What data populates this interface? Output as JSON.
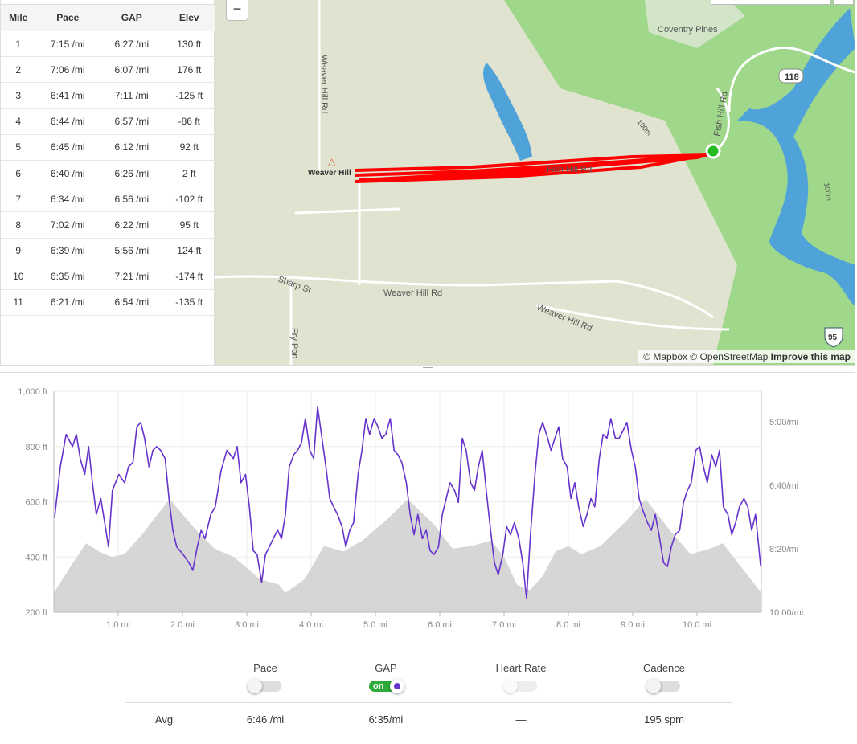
{
  "splits": {
    "headers": [
      "Mile",
      "Pace",
      "GAP",
      "Elev"
    ],
    "rows": [
      [
        "1",
        "7:15 /mi",
        "6:27 /mi",
        "130 ft"
      ],
      [
        "2",
        "7:06 /mi",
        "6:07 /mi",
        "176 ft"
      ],
      [
        "3",
        "6:41 /mi",
        "7:11 /mi",
        "-125 ft"
      ],
      [
        "4",
        "6:44 /mi",
        "6:57 /mi",
        "-86 ft"
      ],
      [
        "5",
        "6:45 /mi",
        "6:12 /mi",
        "92 ft"
      ],
      [
        "6",
        "6:40 /mi",
        "6:26 /mi",
        "2 ft"
      ],
      [
        "7",
        "6:34 /mi",
        "6:56 /mi",
        "-102 ft"
      ],
      [
        "8",
        "7:02 /mi",
        "6:22 /mi",
        "95 ft"
      ],
      [
        "9",
        "6:39 /mi",
        "5:56 /mi",
        "124 ft"
      ],
      [
        "10",
        "6:35 /mi",
        "7:21 /mi",
        "-174 ft"
      ],
      [
        "11",
        "6:21 /mi",
        "6:54 /mi",
        "-135 ft"
      ]
    ]
  },
  "map": {
    "zoom_out_label": "−",
    "labels": {
      "weaver_hill_rd_vertical": "Weaver Hill Rd",
      "weaver_hill": "Weaver Hill",
      "fish_hill_rd": "Fish Hill Rd",
      "fish_hill_rd_vertical": "Fish Hill Rd",
      "coventry_pines": "Coventry Pines",
      "route_118": "118",
      "route_95": "95",
      "contour_100m_a": "100m",
      "contour_100m_b": "100m",
      "sharp_st": "Sharp St",
      "weaver_hill_rd_a": "Weaver Hill Rd",
      "weaver_hill_rd_b": "Weaver Hill Rd",
      "fry_pond": "Fry Pon"
    },
    "attribution": {
      "mapbox": "© Mapbox",
      "osm": "© OpenStreetMap",
      "improve": "Improve this map"
    },
    "colors": {
      "track": "#ff0000",
      "forest": "#9fd88a",
      "water": "#4fa3d9",
      "land": "#e0e3cf",
      "start_marker": "#22bb22"
    }
  },
  "chart_data": {
    "type": "line",
    "xlabel": "",
    "ylabel": "",
    "x_ticks": [
      "1.0 mi",
      "2.0 mi",
      "3.0 mi",
      "4.0 mi",
      "5.0 mi",
      "6.0 mi",
      "7.0 mi",
      "8.0 mi",
      "9.0 mi",
      "10.0 mi"
    ],
    "y_left_ticks": [
      "200 ft",
      "400 ft",
      "600 ft",
      "800 ft",
      "1,000 ft"
    ],
    "y_right_ticks": [
      "5:00/mi",
      "6:40/mi",
      "8:20/mi",
      "10:00/mi"
    ],
    "xlim": [
      0,
      11
    ],
    "ylim_left_ft": [
      200,
      1000
    ],
    "ylim_right_pace": [
      "4:12",
      "10:00"
    ],
    "grid": true,
    "colors": {
      "elevation": "#d6d6d6",
      "gap": "#6633cc"
    },
    "elevation": {
      "miles": [
        0,
        0.3,
        0.5,
        0.7,
        0.9,
        1.1,
        1.4,
        1.8,
        2.2,
        2.5,
        2.8,
        3.2,
        3.5,
        3.6,
        3.9,
        4.2,
        4.5,
        4.8,
        5.2,
        5.5,
        5.9,
        6.2,
        6.5,
        6.8,
        7.0,
        7.2,
        7.4,
        7.6,
        7.8,
        8.0,
        8.2,
        8.5,
        8.9,
        9.2,
        9.6,
        9.9,
        10.2,
        10.4,
        10.7,
        11.0
      ],
      "ft": [
        270,
        380,
        450,
        420,
        400,
        410,
        490,
        610,
        500,
        430,
        400,
        320,
        300,
        270,
        320,
        440,
        420,
        460,
        540,
        610,
        520,
        430,
        440,
        460,
        400,
        300,
        280,
        330,
        420,
        440,
        410,
        440,
        530,
        610,
        490,
        410,
        430,
        450,
        360,
        270
      ]
    },
    "gap": {
      "miles": [
        0.01,
        0.1,
        0.19,
        0.29,
        0.35,
        0.41,
        0.48,
        0.54,
        0.6,
        0.66,
        0.73,
        0.79,
        0.85,
        0.91,
        1.01,
        1.1,
        1.16,
        1.23,
        1.29,
        1.35,
        1.41,
        1.48,
        1.54,
        1.6,
        1.66,
        1.73,
        1.79,
        1.85,
        1.91,
        2.01,
        2.1,
        2.16,
        2.23,
        2.29,
        2.35,
        2.44,
        2.51,
        2.6,
        2.69,
        2.79,
        2.85,
        2.91,
        2.98,
        3.04,
        3.1,
        3.16,
        3.23,
        3.29,
        3.35,
        3.41,
        3.48,
        3.54,
        3.6,
        3.66,
        3.73,
        3.79,
        3.85,
        3.91,
        3.98,
        4.04,
        4.1,
        4.16,
        4.23,
        4.29,
        4.35,
        4.41,
        4.48,
        4.54,
        4.6,
        4.66,
        4.73,
        4.79,
        4.85,
        4.91,
        4.98,
        5.04,
        5.1,
        5.16,
        5.23,
        5.29,
        5.35,
        5.41,
        5.48,
        5.54,
        5.6,
        5.66,
        5.73,
        5.79,
        5.85,
        5.91,
        5.98,
        6.04,
        6.1,
        6.16,
        6.23,
        6.29,
        6.35,
        6.41,
        6.48,
        6.54,
        6.6,
        6.66,
        6.73,
        6.79,
        6.85,
        6.91,
        6.98,
        7.04,
        7.1,
        7.16,
        7.23,
        7.29,
        7.35,
        7.41,
        7.48,
        7.54,
        7.6,
        7.66,
        7.73,
        7.79,
        7.85,
        7.91,
        7.98,
        8.04,
        8.1,
        8.16,
        8.23,
        8.29,
        8.35,
        8.41,
        8.48,
        8.54,
        8.6,
        8.66,
        8.73,
        8.79,
        8.85,
        8.91,
        8.98,
        9.04,
        9.1,
        9.16,
        9.23,
        9.29,
        9.35,
        9.41,
        9.48,
        9.54,
        9.6,
        9.66,
        9.73,
        9.79,
        9.85,
        9.91,
        9.98,
        10.04,
        10.1,
        10.16,
        10.23,
        10.29,
        10.35,
        10.41,
        10.48,
        10.54,
        10.6,
        10.66,
        10.73,
        10.79,
        10.85,
        10.91,
        10.99
      ],
      "pace": [
        "7:32",
        "6:11",
        "5:20",
        "5:39",
        "5:20",
        "5:58",
        "6:23",
        "5:39",
        "6:36",
        "7:26",
        "7:01",
        "7:39",
        "8:17",
        "6:48",
        "6:23",
        "6:36",
        "6:11",
        "6:04",
        "5:08",
        "5:01",
        "5:26",
        "6:11",
        "5:45",
        "5:39",
        "5:45",
        "5:58",
        "7:01",
        "7:51",
        "8:17",
        "8:29",
        "8:42",
        "8:54",
        "8:17",
        "7:51",
        "8:04",
        "7:26",
        "7:14",
        "6:17",
        "5:45",
        "5:58",
        "5:39",
        "6:36",
        "6:23",
        "7:14",
        "8:23",
        "8:29",
        "9:13",
        "8:29",
        "8:17",
        "8:04",
        "7:51",
        "8:04",
        "7:26",
        "6:11",
        "5:52",
        "5:45",
        "5:33",
        "4:55",
        "5:45",
        "5:58",
        "4:36",
        "5:20",
        "6:11",
        "7:01",
        "7:14",
        "7:26",
        "7:45",
        "8:17",
        "7:51",
        "7:39",
        "6:23",
        "5:45",
        "4:55",
        "5:20",
        "4:55",
        "5:08",
        "5:26",
        "5:20",
        "4:55",
        "5:45",
        "5:52",
        "6:04",
        "6:36",
        "7:26",
        "7:58",
        "7:26",
        "8:04",
        "7:51",
        "8:23",
        "8:29",
        "8:17",
        "7:26",
        "7:01",
        "6:36",
        "6:48",
        "7:07",
        "5:26",
        "5:45",
        "6:36",
        "6:48",
        "6:11",
        "5:45",
        "6:55",
        "7:51",
        "8:42",
        "9:01",
        "8:29",
        "7:45",
        "7:58",
        "7:39",
        "8:04",
        "8:42",
        "9:38",
        "7:58",
        "6:23",
        "5:20",
        "5:01",
        "5:20",
        "5:45",
        "5:26",
        "5:08",
        "5:58",
        "6:11",
        "7:01",
        "6:36",
        "7:14",
        "7:45",
        "7:26",
        "7:01",
        "7:14",
        "5:58",
        "5:20",
        "5:26",
        "4:55",
        "5:26",
        "5:26",
        "5:14",
        "5:01",
        "5:45",
        "6:11",
        "7:01",
        "7:20",
        "7:39",
        "7:51",
        "7:26",
        "7:58",
        "8:42",
        "8:48",
        "8:17",
        "7:58",
        "7:51",
        "7:07",
        "6:48",
        "6:36",
        "5:45",
        "5:39",
        "6:11",
        "6:36",
        "5:52",
        "6:11",
        "5:45",
        "7:14",
        "7:26",
        "7:58",
        "7:39",
        "7:14",
        "7:01",
        "7:14",
        "7:51",
        "7:26",
        "8:48"
      ]
    }
  },
  "controls": {
    "toggles": [
      {
        "label": "Pace",
        "on": false
      },
      {
        "label": "GAP",
        "on": true,
        "on_label": "on"
      },
      {
        "label": "Heart Rate",
        "on": false
      },
      {
        "label": "Cadence",
        "on": false
      }
    ],
    "avg_label": "Avg",
    "avg": {
      "pace": "6:46 /mi",
      "gap": "6:35/mi",
      "heart_rate": "—",
      "cadence": "195 spm"
    }
  }
}
